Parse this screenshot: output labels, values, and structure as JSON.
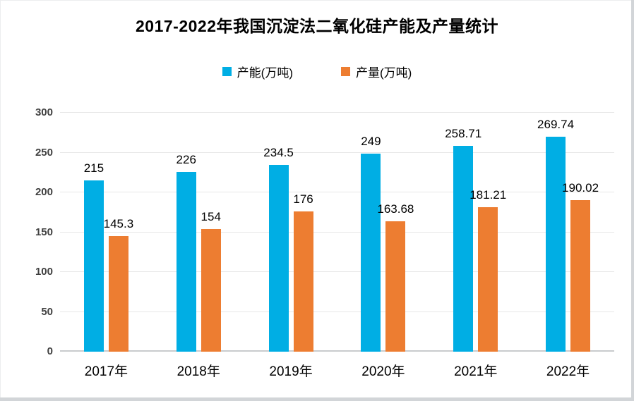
{
  "chart_data": {
    "type": "bar",
    "title": "2017-2022年我国沉淀法二氧化硅产能及产量统计",
    "categories": [
      "2017年",
      "2018年",
      "2019年",
      "2020年",
      "2021年",
      "2022年"
    ],
    "series": [
      {
        "name": "产能(万吨)",
        "color": "#00AEE4",
        "values": [
          215,
          226,
          234.5,
          249,
          258.71,
          269.74
        ]
      },
      {
        "name": "产量(万吨)",
        "color": "#ED7D31",
        "values": [
          145.3,
          154,
          176,
          163.68,
          181.21,
          190.02
        ]
      }
    ],
    "xlabel": "",
    "ylabel": "",
    "ylim": [
      0,
      300
    ],
    "yticks": [
      0,
      50,
      100,
      150,
      200,
      250,
      300
    ],
    "grid": true,
    "grid_color": "#e7e7e7",
    "axis_line_color": "#c9cbcd",
    "tick_label_color": "#404040",
    "legend_position": "top",
    "data_labels": true
  }
}
